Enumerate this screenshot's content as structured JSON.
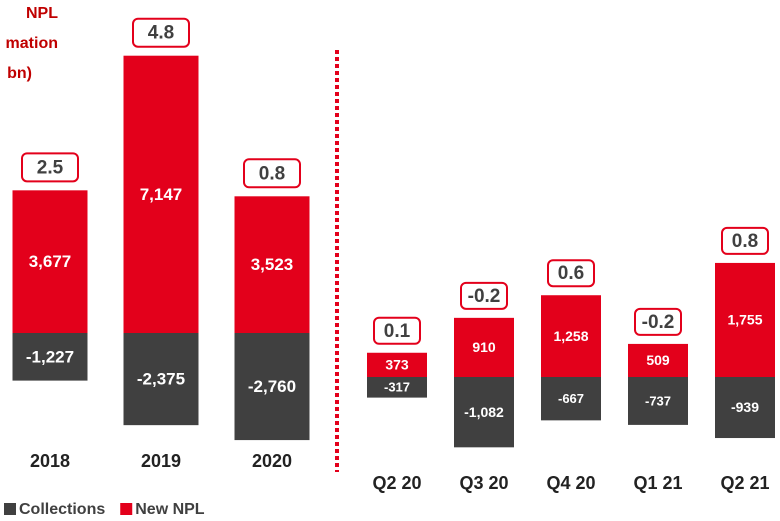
{
  "chart_data": {
    "type": "bar",
    "title": [
      "NPL",
      "mation",
      "bn)"
    ],
    "categories": [
      "2018",
      "2019",
      "2020",
      "Q2 20",
      "Q3 20",
      "Q4 20",
      "Q1 21",
      "Q2 21"
    ],
    "series": [
      {
        "name": "Collections",
        "color": "#404040",
        "values": [
          -1227,
          -2375,
          -2760,
          -317,
          -1082,
          -667,
          -737,
          -939
        ],
        "value_labels": [
          "-1,227",
          "-2,375",
          "-2,760",
          "-317",
          "-1,082",
          "-667",
          "-737",
          "-939"
        ]
      },
      {
        "name": "New NPL",
        "color": "#e3001b",
        "values": [
          3677,
          7147,
          3523,
          373,
          910,
          1258,
          509,
          1755
        ],
        "value_labels": [
          "3,677",
          "7,147",
          "3,523",
          "373",
          "910",
          "1,258",
          "509",
          "1,755"
        ]
      }
    ],
    "net": [
      2.5,
      4.8,
      0.8,
      0.1,
      -0.2,
      0.6,
      -0.2,
      0.8
    ]
  }
}
